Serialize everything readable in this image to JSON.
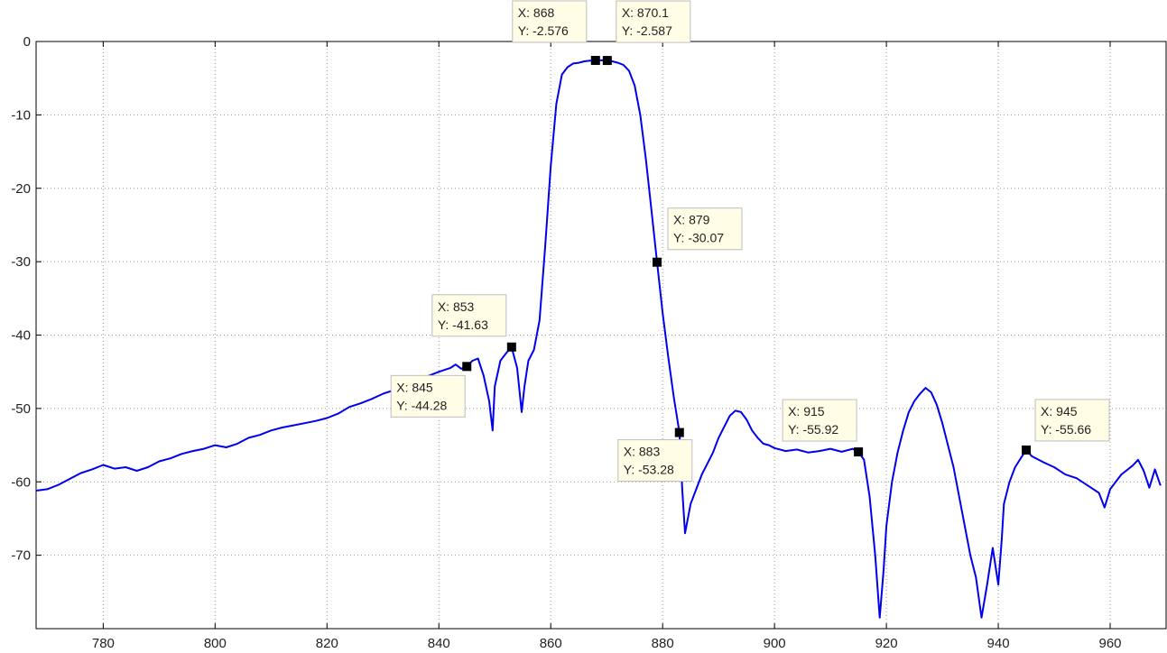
{
  "chart_data": {
    "type": "line",
    "title": "",
    "xlabel": "",
    "ylabel": "",
    "xlim": [
      768,
      970
    ],
    "ylim": [
      -80,
      0
    ],
    "grid": true,
    "x_ticks": [
      780,
      800,
      820,
      840,
      860,
      880,
      900,
      920,
      940,
      960
    ],
    "y_ticks": [
      0,
      -10,
      -20,
      -30,
      -40,
      -50,
      -60,
      -70
    ],
    "series": [
      {
        "color": "#0000ee",
        "points": [
          [
            768,
            -61.2
          ],
          [
            770,
            -61.0
          ],
          [
            772,
            -60.4
          ],
          [
            774,
            -59.6
          ],
          [
            776,
            -58.8
          ],
          [
            778,
            -58.3
          ],
          [
            780,
            -57.7
          ],
          [
            782,
            -58.2
          ],
          [
            784,
            -58.0
          ],
          [
            786,
            -58.5
          ],
          [
            788,
            -58.0
          ],
          [
            790,
            -57.2
          ],
          [
            792,
            -56.8
          ],
          [
            794,
            -56.2
          ],
          [
            796,
            -55.8
          ],
          [
            798,
            -55.5
          ],
          [
            800,
            -55.0
          ],
          [
            802,
            -55.3
          ],
          [
            804,
            -54.8
          ],
          [
            806,
            -54.0
          ],
          [
            808,
            -53.6
          ],
          [
            810,
            -53.0
          ],
          [
            812,
            -52.6
          ],
          [
            814,
            -52.3
          ],
          [
            816,
            -52.0
          ],
          [
            818,
            -51.7
          ],
          [
            820,
            -51.3
          ],
          [
            822,
            -50.7
          ],
          [
            824,
            -49.8
          ],
          [
            826,
            -49.3
          ],
          [
            828,
            -48.7
          ],
          [
            830,
            -48.0
          ],
          [
            832,
            -47.5
          ],
          [
            834,
            -47.0
          ],
          [
            836,
            -46.3
          ],
          [
            838,
            -45.6
          ],
          [
            840,
            -45.0
          ],
          [
            842,
            -44.5
          ],
          [
            843,
            -44.0
          ],
          [
            844,
            -44.6
          ],
          [
            845,
            -44.28
          ],
          [
            846,
            -43.5
          ],
          [
            847,
            -43.2
          ],
          [
            848,
            -45.5
          ],
          [
            849,
            -49.0
          ],
          [
            849.6,
            -53.0
          ],
          [
            850,
            -47.0
          ],
          [
            851,
            -43.5
          ],
          [
            852,
            -42.5
          ],
          [
            853,
            -41.63
          ],
          [
            854,
            -44.5
          ],
          [
            854.8,
            -50.5
          ],
          [
            855.3,
            -47.0
          ],
          [
            856,
            -43.5
          ],
          [
            857,
            -42.0
          ],
          [
            858,
            -38.0
          ],
          [
            859,
            -28.0
          ],
          [
            860,
            -17.0
          ],
          [
            861,
            -8.5
          ],
          [
            862,
            -4.5
          ],
          [
            863,
            -3.5
          ],
          [
            864,
            -3.0
          ],
          [
            865,
            -2.9
          ],
          [
            866,
            -2.7
          ],
          [
            867,
            -2.6
          ],
          [
            868,
            -2.576
          ],
          [
            869,
            -2.55
          ],
          [
            870.1,
            -2.587
          ],
          [
            871,
            -2.7
          ],
          [
            872,
            -2.9
          ],
          [
            873,
            -3.2
          ],
          [
            874,
            -4.0
          ],
          [
            875,
            -6.0
          ],
          [
            876,
            -10.0
          ],
          [
            877,
            -16.0
          ],
          [
            878,
            -23.0
          ],
          [
            879,
            -30.07
          ],
          [
            880,
            -37.0
          ],
          [
            881,
            -43.0
          ],
          [
            882,
            -48.5
          ],
          [
            883,
            -53.28
          ],
          [
            883.5,
            -61.0
          ],
          [
            884,
            -67.0
          ],
          [
            885,
            -63.0
          ],
          [
            886,
            -61.0
          ],
          [
            887,
            -59.0
          ],
          [
            888,
            -57.5
          ],
          [
            889,
            -56.0
          ],
          [
            890,
            -54.0
          ],
          [
            891,
            -52.5
          ],
          [
            892,
            -51.0
          ],
          [
            893,
            -50.3
          ],
          [
            894,
            -50.5
          ],
          [
            895,
            -51.5
          ],
          [
            896,
            -53.0
          ],
          [
            897,
            -54.0
          ],
          [
            898,
            -54.8
          ],
          [
            899,
            -55.0
          ],
          [
            900,
            -55.4
          ],
          [
            902,
            -55.8
          ],
          [
            904,
            -55.6
          ],
          [
            906,
            -56.0
          ],
          [
            908,
            -55.8
          ],
          [
            910,
            -55.5
          ],
          [
            912,
            -55.9
          ],
          [
            914,
            -55.5
          ],
          [
            915,
            -55.92
          ],
          [
            916,
            -57.0
          ],
          [
            917,
            -62.0
          ],
          [
            918,
            -70.0
          ],
          [
            918.8,
            -78.5
          ],
          [
            919.5,
            -72.0
          ],
          [
            920,
            -66.0
          ],
          [
            921,
            -60.0
          ],
          [
            922,
            -56.0
          ],
          [
            923,
            -53.0
          ],
          [
            924,
            -50.5
          ],
          [
            925,
            -49.0
          ],
          [
            926,
            -48.0
          ],
          [
            927,
            -47.2
          ],
          [
            928,
            -47.8
          ],
          [
            929,
            -49.5
          ],
          [
            930,
            -52.0
          ],
          [
            931,
            -55.0
          ],
          [
            932,
            -58.0
          ],
          [
            933,
            -62.0
          ],
          [
            934,
            -66.0
          ],
          [
            935,
            -70.0
          ],
          [
            936,
            -73.0
          ],
          [
            937,
            -78.5
          ],
          [
            938,
            -74.0
          ],
          [
            939,
            -69.0
          ],
          [
            940,
            -74.0
          ],
          [
            940.6,
            -68.0
          ],
          [
            941,
            -63.0
          ],
          [
            942,
            -60.0
          ],
          [
            943,
            -58.0
          ],
          [
            944,
            -56.8
          ],
          [
            945,
            -55.66
          ],
          [
            946,
            -56.5
          ],
          [
            948,
            -57.3
          ],
          [
            950,
            -58.0
          ],
          [
            952,
            -59.0
          ],
          [
            954,
            -59.5
          ],
          [
            956,
            -60.5
          ],
          [
            958,
            -61.5
          ],
          [
            959,
            -63.5
          ],
          [
            960,
            -61.0
          ],
          [
            962,
            -59.0
          ],
          [
            964,
            -57.8
          ],
          [
            965,
            -57.0
          ],
          [
            966,
            -58.5
          ],
          [
            967,
            -60.8
          ],
          [
            968,
            -58.3
          ],
          [
            969,
            -60.5
          ]
        ]
      }
    ],
    "datatips": [
      {
        "x": 868,
        "y": -2.576,
        "line1": "X: 868",
        "line2": "Y: -2.576"
      },
      {
        "x": 870.1,
        "y": -2.587,
        "line1": "X: 870.1",
        "line2": "Y: -2.587"
      },
      {
        "x": 879,
        "y": -30.07,
        "line1": "X: 879",
        "line2": "Y: -30.07"
      },
      {
        "x": 853,
        "y": -41.63,
        "line1": "X: 853",
        "line2": "Y: -41.63"
      },
      {
        "x": 845,
        "y": -44.28,
        "line1": "X: 845",
        "line2": "Y: -44.28"
      },
      {
        "x": 883,
        "y": -53.28,
        "line1": "X: 883",
        "line2": "Y: -53.28"
      },
      {
        "x": 915,
        "y": -55.92,
        "line1": "X: 915",
        "line2": "Y: -55.92"
      },
      {
        "x": 945,
        "y": -55.66,
        "line1": "X: 945",
        "line2": "Y: -55.66"
      }
    ]
  }
}
